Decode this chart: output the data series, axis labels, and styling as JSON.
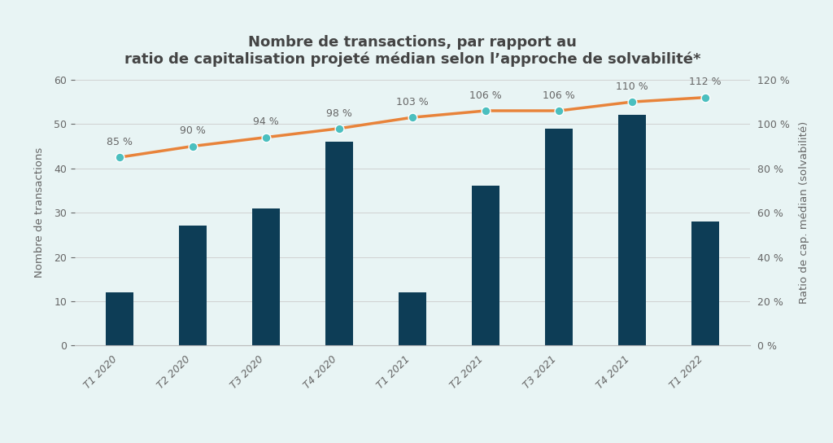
{
  "categories": [
    "T1 2020",
    "T2 2020",
    "T3 2020",
    "T4 2020",
    "T1 2021",
    "T2 2021",
    "T3 2021",
    "T4 2021",
    "T1 2022"
  ],
  "bar_values": [
    12,
    27,
    31,
    46,
    12,
    36,
    49,
    52,
    28
  ],
  "line_values": [
    85,
    90,
    94,
    98,
    103,
    106,
    106,
    110,
    112
  ],
  "bar_color": "#0d3d56",
  "line_color": "#e8833a",
  "marker_color": "#4bbfbf",
  "background_color": "#e8f4f4",
  "title_line1": "Nombre de transactions, par rapport au",
  "title_line2": "ratio de capitalisation projeté médian selon l’approche de solvabilité*",
  "ylabel_left": "Nombre de transactions",
  "ylabel_right": "Ratio de cap. médian (solvabilité)",
  "ylim_left": [
    0,
    60
  ],
  "ylim_right": [
    0,
    120
  ],
  "yticks_left": [
    0,
    10,
    20,
    30,
    40,
    50,
    60
  ],
  "yticks_right": [
    0,
    20,
    40,
    60,
    80,
    100,
    120
  ],
  "title_fontsize": 13,
  "label_fontsize": 9.5,
  "tick_fontsize": 9,
  "annotation_fontsize": 9
}
